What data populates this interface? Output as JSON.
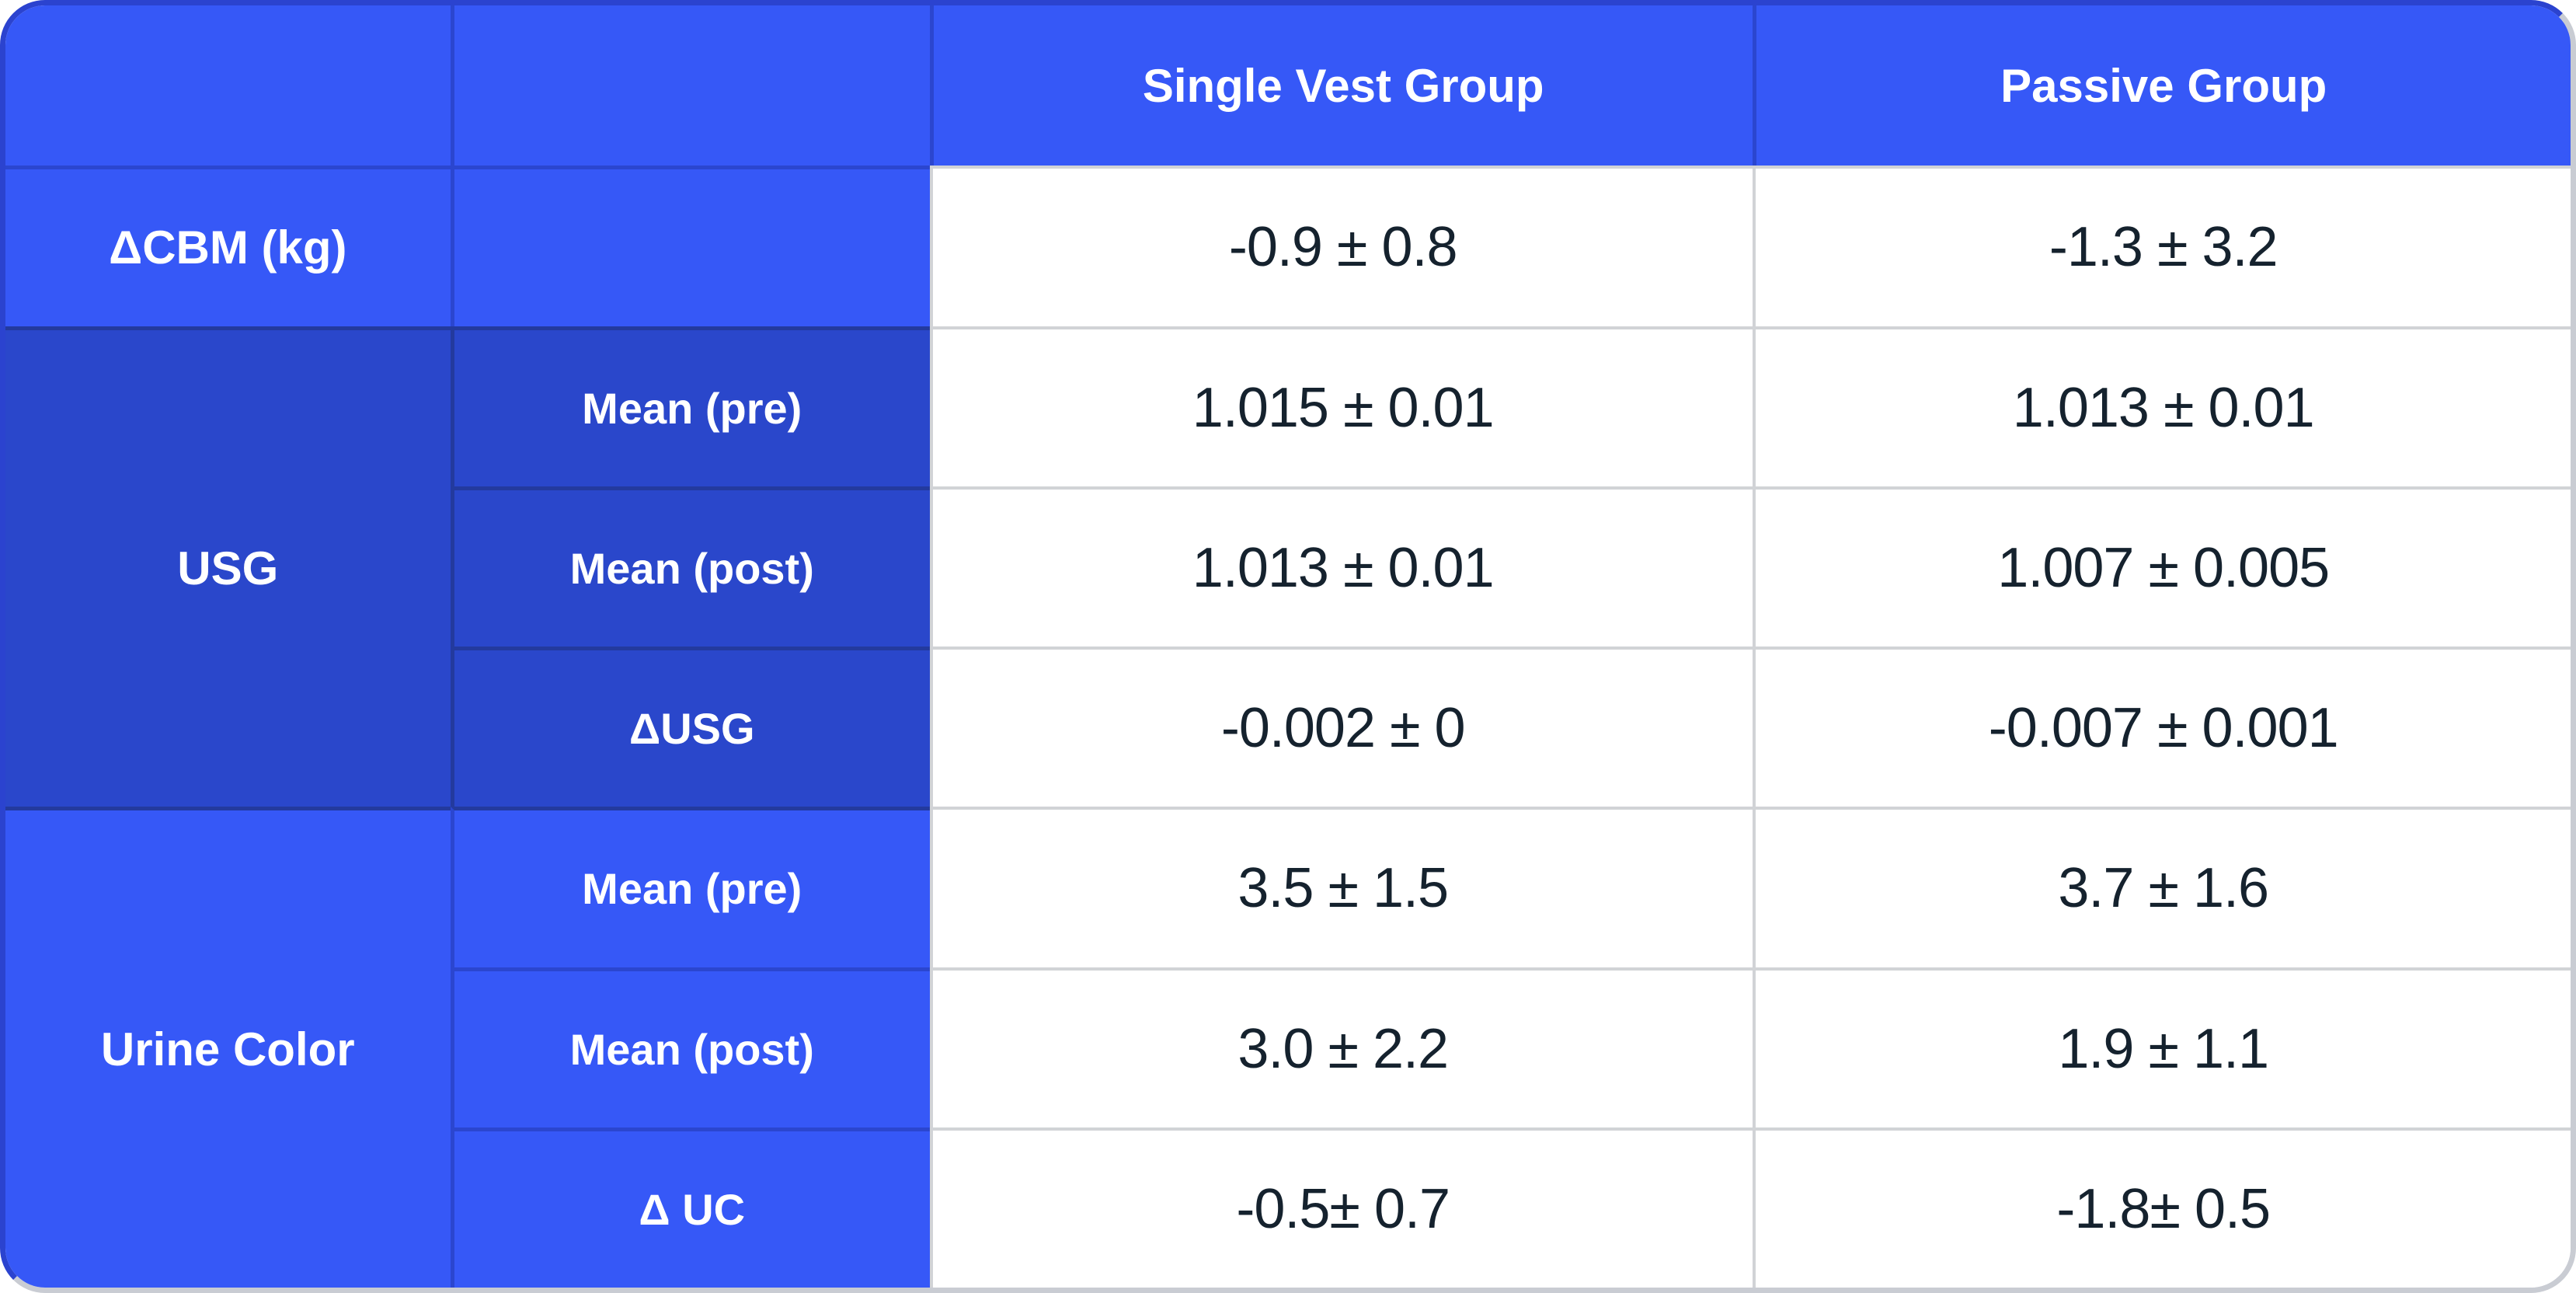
{
  "chart_data": {
    "type": "table",
    "title": "",
    "columns": [
      "",
      "",
      "Single Vest Group",
      "Passive Group"
    ],
    "row_groups": [
      {
        "label": "ΔCBM (kg)",
        "rows": [
          {
            "sub": "",
            "single_vest": "-0.9 ± 0.8",
            "passive": "-1.3 ± 3.2"
          }
        ]
      },
      {
        "label": "USG",
        "rows": [
          {
            "sub": "Mean (pre)",
            "single_vest": "1.015 ± 0.01",
            "passive": "1.013 ± 0.01"
          },
          {
            "sub": "Mean (post)",
            "single_vest": "1.013 ± 0.01",
            "passive": "1.007 ± 0.005"
          },
          {
            "sub": "ΔUSG",
            "single_vest": "-0.002 ± 0",
            "passive": "-0.007 ± 0.001"
          }
        ]
      },
      {
        "label": "Urine Color",
        "rows": [
          {
            "sub": "Mean (pre)",
            "single_vest": "3.5 ± 1.5",
            "passive": "3.7 ± 1.6"
          },
          {
            "sub": "Mean (post)",
            "single_vest": "3.0 ± 2.2",
            "passive": "1.9 ± 1.1"
          },
          {
            "sub": "Δ UC",
            "single_vest": "-0.5± 0.7",
            "passive": "-1.8± 0.5"
          }
        ]
      }
    ],
    "layout": {
      "header_position": "top",
      "grouped_row_labels": true,
      "grid": "on"
    }
  },
  "colors": {
    "header_blue": "#3658F7",
    "section_blue_dark": "#2A47CB",
    "divider_navy": "#233A9E",
    "divider_blue": "#2B46CF",
    "divider_gray": "#D1D3D6",
    "edge_blue": "#2B43CF",
    "edge_gray": "#C9CCD3",
    "value_ink": "#15222E",
    "text_white": "#FFFFFF"
  }
}
